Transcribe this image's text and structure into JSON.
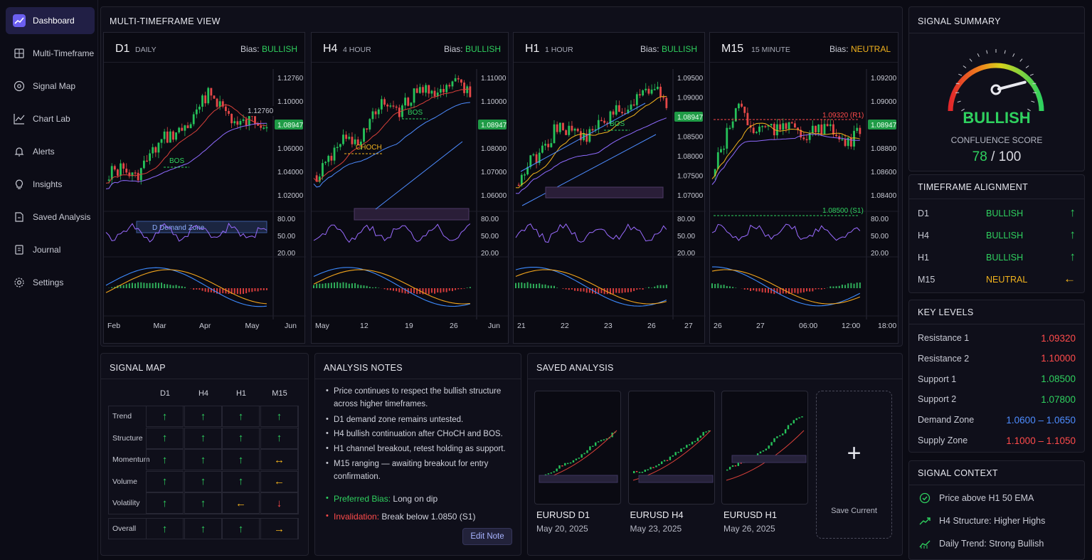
{
  "sidebar": {
    "items": [
      {
        "label": "Dashboard",
        "icon": "chart-icon",
        "active": true
      },
      {
        "label": "Multi-Timeframe",
        "icon": "grid-icon"
      },
      {
        "label": "Signal Map",
        "icon": "target-icon"
      },
      {
        "label": "Chart Lab",
        "icon": "line-chart-icon"
      },
      {
        "label": "Alerts",
        "icon": "bell-icon"
      },
      {
        "label": "Insights",
        "icon": "lightbulb-icon"
      },
      {
        "label": "Saved Analysis",
        "icon": "folder-icon"
      },
      {
        "label": "Journal",
        "icon": "book-icon"
      },
      {
        "label": "Settings",
        "icon": "gear-icon"
      }
    ]
  },
  "mtf": {
    "title": "MULTI-TIMEFRAME VIEW",
    "bias_label": "Bias:",
    "panels": [
      {
        "tf": "D1",
        "sub": "DAILY",
        "bias": "BULLISH",
        "bias_color": "#2fd15f",
        "prices": [
          "1.12760",
          "1.10000",
          "1.08947",
          "1.06000",
          "1.04000",
          "1.02000"
        ],
        "rsi": [
          "80.00",
          "50.00",
          "20.00"
        ],
        "xticks": [
          "Feb",
          "Mar",
          "Apr",
          "May",
          "Jun"
        ],
        "labels": {
          "bos": "BOS",
          "zone": "D Demand Zone"
        }
      },
      {
        "tf": "H4",
        "sub": "4 HOUR",
        "bias": "BULLISH",
        "bias_color": "#2fd15f",
        "prices": [
          "1.11000",
          "1.10000",
          "1.08947",
          "1.08000",
          "1.07000",
          "1.06000"
        ],
        "rsi": [
          "80.00",
          "50.00",
          "20.00"
        ],
        "xticks": [
          "May",
          "12",
          "19",
          "26",
          "Jun"
        ],
        "labels": {
          "bos": "BOS",
          "choch": "CHOCH"
        }
      },
      {
        "tf": "H1",
        "sub": "1 HOUR",
        "bias": "BULLISH",
        "bias_color": "#2fd15f",
        "prices": [
          "1.09500",
          "1.09000",
          "1.08947",
          "1.08500",
          "1.08000",
          "1.07500",
          "1.07000"
        ],
        "rsi": [
          "80.00",
          "50.00",
          "20.00"
        ],
        "xticks": [
          "21",
          "22",
          "23",
          "26",
          "27"
        ],
        "labels": {
          "bos": "BOS"
        }
      },
      {
        "tf": "M15",
        "sub": "15 MINUTE",
        "bias": "NEUTRAL",
        "bias_color": "#f2b31d",
        "prices": [
          "1.09200",
          "1.09000",
          "1.08947",
          "1.08800",
          "1.08600",
          "1.08400"
        ],
        "rsi": [
          "80.00",
          "50.00",
          "20.00"
        ],
        "xticks": [
          "26",
          "27",
          "06:00",
          "12:00",
          "18:00"
        ],
        "labels": {
          "r1": "1.09320 (R1)",
          "s1": "1.08500 (S1)"
        }
      }
    ]
  },
  "signal_summary": {
    "title": "SIGNAL SUMMARY",
    "bias": "BULLISH",
    "confluence_label": "CONFLUENCE SCORE",
    "score": "78",
    "score_sep": "/",
    "score_max": "100",
    "score_value": 78
  },
  "timeframe_alignment": {
    "title": "TIMEFRAME ALIGNMENT",
    "rows": [
      {
        "tf": "D1",
        "status": "BULLISH",
        "arrow": "↑",
        "color": "#2fd15f"
      },
      {
        "tf": "H4",
        "status": "BULLISH",
        "arrow": "↑",
        "color": "#2fd15f"
      },
      {
        "tf": "H1",
        "status": "BULLISH",
        "arrow": "↑",
        "color": "#2fd15f"
      },
      {
        "tf": "M15",
        "status": "NEUTRAL",
        "arrow": "←",
        "color": "#f2b31d"
      }
    ]
  },
  "key_levels": {
    "title": "KEY LEVELS",
    "rows": [
      {
        "label": "Resistance 1",
        "value": "1.09320",
        "color": "#ff4b4b"
      },
      {
        "label": "Resistance 2",
        "value": "1.10000",
        "color": "#ff4b4b"
      },
      {
        "label": "Support 1",
        "value": "1.08500",
        "color": "#2fd15f"
      },
      {
        "label": "Support 2",
        "value": "1.07800",
        "color": "#2fd15f"
      },
      {
        "label": "Demand Zone",
        "value": "1.0600 – 1.0650",
        "color": "#4d8cff"
      },
      {
        "label": "Supply Zone",
        "value": "1.1000 – 1.1050",
        "color": "#ff4b4b"
      }
    ]
  },
  "signal_context": {
    "title": "SIGNAL CONTEXT",
    "rows": [
      {
        "icon": "check-circle-icon",
        "text": "Price above H1 50 EMA"
      },
      {
        "icon": "trend-up-icon",
        "text": "H4 Structure: Higher Highs"
      },
      {
        "icon": "trend-chart-icon",
        "text": "Daily Trend: Strong Bullish"
      }
    ]
  },
  "signal_map": {
    "title": "SIGNAL MAP",
    "columns": [
      "D1",
      "H4",
      "H1",
      "M15"
    ],
    "rows": [
      {
        "label": "Trend",
        "cells": [
          [
            "↑",
            "#2fd15f"
          ],
          [
            "↑",
            "#2fd15f"
          ],
          [
            "↑",
            "#2fd15f"
          ],
          [
            "↑",
            "#2fd15f"
          ]
        ]
      },
      {
        "label": "Structure",
        "cells": [
          [
            "↑",
            "#2fd15f"
          ],
          [
            "↑",
            "#2fd15f"
          ],
          [
            "↑",
            "#2fd15f"
          ],
          [
            "↑",
            "#2fd15f"
          ]
        ]
      },
      {
        "label": "Momentum",
        "cells": [
          [
            "↑",
            "#2fd15f"
          ],
          [
            "↑",
            "#2fd15f"
          ],
          [
            "↑",
            "#2fd15f"
          ],
          [
            "↔",
            "#f2b31d"
          ]
        ]
      },
      {
        "label": "Volume",
        "cells": [
          [
            "↑",
            "#2fd15f"
          ],
          [
            "↑",
            "#2fd15f"
          ],
          [
            "↑",
            "#2fd15f"
          ],
          [
            "←",
            "#f2b31d"
          ]
        ]
      },
      {
        "label": "Volatility",
        "cells": [
          [
            "↑",
            "#2fd15f"
          ],
          [
            "↑",
            "#2fd15f"
          ],
          [
            "←",
            "#f2b31d"
          ],
          [
            "↓",
            "#ff4b4b"
          ]
        ]
      }
    ],
    "overall": {
      "label": "Overall",
      "cells": [
        [
          "↑",
          "#2fd15f"
        ],
        [
          "↑",
          "#2fd15f"
        ],
        [
          "↑",
          "#2fd15f"
        ],
        [
          "→",
          "#f2b31d"
        ]
      ]
    }
  },
  "analysis_notes": {
    "title": "ANALYSIS NOTES",
    "items": [
      "Price continues to respect the bullish structure across higher timeframes.",
      "D1 demand zone remains untested.",
      "H4 bullish continuation after CHoCH and BOS.",
      "H1 channel breakout, retest holding as support.",
      "M15 ranging — awaiting breakout for entry confirmation."
    ],
    "preferred_label": "Preferred Bias:",
    "preferred_value": "Long on dip",
    "invalidation_label": "Invalidation:",
    "invalidation_value": "Break below 1.0850 (S1)",
    "edit_button": "Edit Note"
  },
  "saved_analysis": {
    "title": "SAVED ANALYSIS",
    "items": [
      {
        "pair": "EURUSD",
        "tf": "D1",
        "date": "May 20, 2025"
      },
      {
        "pair": "EURUSD",
        "tf": "H4",
        "date": "May 23, 2025"
      },
      {
        "pair": "EURUSD",
        "tf": "H1",
        "date": "May 26, 2025"
      }
    ],
    "save_label": "Save Current",
    "save_icon": "plus-icon"
  }
}
